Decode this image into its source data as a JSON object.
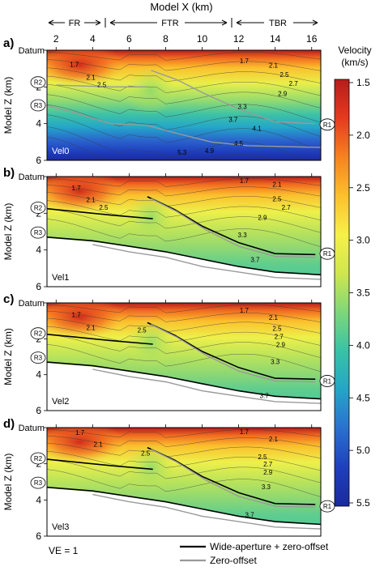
{
  "header": {
    "x_axis_title": "Model X (km)",
    "zones": [
      "FR",
      "FTR",
      "TBR"
    ]
  },
  "colorbar": {
    "title_line1": "Velocity",
    "title_line2": "(km/s)",
    "ticks": [
      "1.5",
      "2.0",
      "2.5",
      "3.0",
      "3.5",
      "4.0",
      "4.5",
      "5.0",
      "5.5"
    ],
    "min": 1.5,
    "max": 5.5,
    "colors": [
      "#b71c1c",
      "#e53a1f",
      "#f7821e",
      "#fbc02d",
      "#f6f04a",
      "#cfe74d",
      "#7fd67a",
      "#37c3a5",
      "#23a6c6",
      "#2b70d0",
      "#1f3fbe",
      "#1a2a9e"
    ]
  },
  "common": {
    "x_ticks": [
      "2",
      "4",
      "6",
      "8",
      "10",
      "12",
      "14",
      "16"
    ],
    "y_ticks": [
      "0",
      "2",
      "4",
      "6"
    ],
    "y_axis_title": "Model Z (km)",
    "datum_label": "Datum",
    "reflector_labels": [
      "R1",
      "R2",
      "R3"
    ]
  },
  "legend": {
    "wide_label": "Wide-aperture + zero-offset",
    "zero_label": "Zero-offset",
    "ve_label": "VE = 1",
    "wide_color": "#000000",
    "zero_color": "#9a9a9a"
  },
  "chart_data": [
    {
      "type": "heatmap",
      "panel_label": "a)",
      "model_name": "Vel0",
      "x_range": [
        1.5,
        16.5
      ],
      "z_range": [
        6,
        0
      ],
      "contour_labels": [
        "1.7",
        "2.1",
        "2.5",
        "1.7",
        "2.1",
        "2.5",
        "2.7",
        "2.9",
        "3.3",
        "3.7",
        "4.1",
        "4.5",
        "5.3",
        "4.9"
      ],
      "contour_values": [
        1.7,
        2.1,
        2.5,
        1.7,
        2.1,
        2.5,
        2.7,
        2.9,
        3.3,
        3.7,
        4.1,
        4.5,
        5.3,
        4.9
      ],
      "contour_label_positions": [
        [
          3.0,
          0.9
        ],
        [
          3.9,
          1.6
        ],
        [
          4.5,
          2.0
        ],
        [
          12.3,
          0.7
        ],
        [
          13.9,
          0.95
        ],
        [
          14.5,
          1.45
        ],
        [
          15.0,
          1.95
        ],
        [
          14.4,
          2.5
        ],
        [
          12.2,
          3.2
        ],
        [
          11.7,
          3.9
        ],
        [
          13.0,
          4.4
        ],
        [
          12.0,
          5.2
        ],
        [
          8.9,
          5.7
        ],
        [
          10.4,
          5.6
        ]
      ]
    },
    {
      "type": "heatmap",
      "panel_label": "b)",
      "model_name": "Vel1",
      "x_range": [
        1.5,
        16.5
      ],
      "z_range": [
        6,
        0
      ],
      "contour_labels": [
        "1.7",
        "2.1",
        "2.5",
        "1.7",
        "2.1",
        "2.5",
        "2.7",
        "2.9",
        "3.3",
        "3.7"
      ],
      "contour_values": [
        1.7,
        2.1,
        2.5,
        1.7,
        2.1,
        2.5,
        2.7,
        2.9,
        3.3,
        3.7
      ],
      "contour_label_positions": [
        [
          3.1,
          0.75
        ],
        [
          3.9,
          1.4
        ],
        [
          4.6,
          1.8
        ],
        [
          12.3,
          0.35
        ],
        [
          14.1,
          0.55
        ],
        [
          14.1,
          1.35
        ],
        [
          14.6,
          1.8
        ],
        [
          13.3,
          2.35
        ],
        [
          12.2,
          3.3
        ],
        [
          12.9,
          4.65
        ]
      ]
    },
    {
      "type": "heatmap",
      "panel_label": "c)",
      "model_name": "Vel2",
      "x_range": [
        1.5,
        16.5
      ],
      "z_range": [
        6,
        0
      ],
      "contour_labels": [
        "1.7",
        "2.1",
        "2.5",
        "1.7",
        "2.1",
        "2.5",
        "2.7",
        "2.9",
        "3.3",
        "3.7"
      ],
      "contour_values": [
        1.7,
        2.1,
        2.5,
        1.7,
        2.1,
        2.5,
        2.7,
        2.9,
        3.3,
        3.7
      ],
      "contour_label_positions": [
        [
          3.1,
          0.8
        ],
        [
          3.9,
          1.5
        ],
        [
          6.7,
          1.65
        ],
        [
          12.3,
          0.55
        ],
        [
          13.9,
          0.95
        ],
        [
          14.1,
          1.55
        ],
        [
          14.2,
          2.0
        ],
        [
          14.3,
          2.45
        ],
        [
          14.0,
          3.4
        ],
        [
          13.4,
          5.3
        ]
      ]
    },
    {
      "type": "heatmap",
      "panel_label": "d)",
      "model_name": "Vel3",
      "x_range": [
        1.5,
        16.5
      ],
      "z_range": [
        6,
        0
      ],
      "contour_labels": [
        "1.7",
        "2.1",
        "2.5",
        "1.7",
        "2.1",
        "2.5",
        "2.7",
        "2.9",
        "3.3",
        "3.7"
      ],
      "contour_values": [
        1.7,
        2.1,
        2.5,
        1.7,
        2.1,
        2.5,
        2.7,
        2.9,
        3.3,
        3.7
      ],
      "contour_label_positions": [
        [
          3.3,
          0.4
        ],
        [
          4.3,
          1.05
        ],
        [
          6.9,
          1.55
        ],
        [
          12.3,
          0.35
        ],
        [
          13.9,
          0.75
        ],
        [
          13.3,
          1.75
        ],
        [
          13.6,
          2.15
        ],
        [
          13.6,
          2.6
        ],
        [
          13.5,
          3.4
        ],
        [
          12.6,
          4.95
        ]
      ]
    }
  ]
}
